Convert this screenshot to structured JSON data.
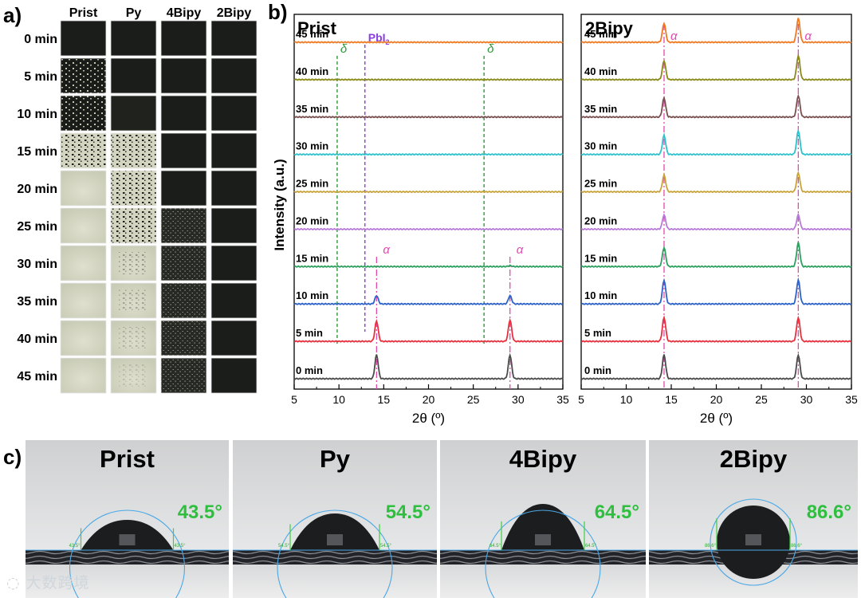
{
  "panel_labels": {
    "a": "a)",
    "b": "b)",
    "c": "c)"
  },
  "panel_a": {
    "columns": [
      "Prist",
      "Py",
      "4Bipy",
      "2Bipy"
    ],
    "rows": [
      "0 min",
      "5 min",
      "10 min",
      "15 min",
      "20 min",
      "25 min",
      "30 min",
      "35 min",
      "40 min",
      "45 min"
    ]
  },
  "panel_b": {
    "ylabel": "Intensity (a.u.)",
    "colors": [
      "#4a4a4a",
      "#e8313f",
      "#2f63c8",
      "#2ea060",
      "#b87ad8",
      "#c9a33a",
      "#2fc2cc",
      "#7a5050",
      "#8a8a1a",
      "#ef7a22"
    ]
  },
  "panel_c": {
    "samples": [
      {
        "name": "Prist",
        "angle": "43.5°",
        "small_label": "43.5°"
      },
      {
        "name": "Py",
        "angle": "54.5°",
        "small_label": "54.5°"
      },
      {
        "name": "4Bipy",
        "angle": "64.5°",
        "small_label": "64.5°"
      },
      {
        "name": "2Bipy",
        "angle": "86.6°",
        "small_label": "86.6°"
      }
    ]
  },
  "watermark": "大数跨境",
  "chart_data": [
    {
      "type": "line",
      "title": "Prist",
      "xlabel": "2θ (º)",
      "ylabel": "Intensity (a.u.)",
      "xlim": [
        5,
        35
      ],
      "xticks": [
        5,
        10,
        15,
        20,
        25,
        30,
        35
      ],
      "series_labels": [
        "0 min",
        "5 min",
        "10 min",
        "15 min",
        "20 min",
        "25 min",
        "30 min",
        "35 min",
        "40 min",
        "45 min"
      ],
      "series_peaks": [
        [
          {
            "x": 14.2,
            "h": 1.0
          },
          {
            "x": 29.1,
            "h": 1.0
          }
        ],
        [
          {
            "x": 14.2,
            "h": 0.85
          },
          {
            "x": 29.1,
            "h": 0.9
          }
        ],
        [
          {
            "x": 14.2,
            "h": 0.35
          },
          {
            "x": 29.1,
            "h": 0.35
          }
        ],
        [
          {
            "x": 29.1,
            "h": 0.04
          }
        ],
        [],
        [],
        [],
        [],
        [],
        []
      ],
      "reference_lines": [
        {
          "x": 9.8,
          "label": "δ",
          "style": "green-dashed"
        },
        {
          "x": 12.9,
          "label": "PbI",
          "subscript": "2",
          "style": "purple-dashed"
        },
        {
          "x": 26.2,
          "label": "δ",
          "style": "green-dashed"
        },
        {
          "x": 14.2,
          "label": "α",
          "style": "pink-dashdot"
        },
        {
          "x": 29.1,
          "label": "α",
          "style": "pink-dashdot"
        }
      ]
    },
    {
      "type": "line",
      "title": "2Bipy",
      "xlabel": "2θ (º)",
      "xlim": [
        5,
        35
      ],
      "xticks": [
        5,
        10,
        15,
        20,
        25,
        30,
        35
      ],
      "series_labels": [
        "0 min",
        "5 min",
        "10 min",
        "15 min",
        "20 min",
        "25 min",
        "30 min",
        "35 min",
        "40 min",
        "45 min"
      ],
      "series_peaks": [
        [
          {
            "x": 14.2,
            "h": 1.0
          },
          {
            "x": 29.1,
            "h": 1.0
          }
        ],
        [
          {
            "x": 14.2,
            "h": 1.0
          },
          {
            "x": 29.1,
            "h": 1.0
          }
        ],
        [
          {
            "x": 14.2,
            "h": 1.0
          },
          {
            "x": 29.1,
            "h": 1.0
          }
        ],
        [
          {
            "x": 14.2,
            "h": 0.8
          },
          {
            "x": 29.1,
            "h": 1.0
          }
        ],
        [
          {
            "x": 14.2,
            "h": 0.6
          },
          {
            "x": 29.1,
            "h": 0.6
          }
        ],
        [
          {
            "x": 14.2,
            "h": 0.7
          },
          {
            "x": 29.1,
            "h": 0.8
          }
        ],
        [
          {
            "x": 14.2,
            "h": 0.8
          },
          {
            "x": 29.1,
            "h": 1.0
          }
        ],
        [
          {
            "x": 14.2,
            "h": 0.8
          },
          {
            "x": 29.1,
            "h": 0.9
          }
        ],
        [
          {
            "x": 14.2,
            "h": 0.8
          },
          {
            "x": 29.1,
            "h": 1.0
          }
        ],
        [
          {
            "x": 14.2,
            "h": 0.8
          },
          {
            "x": 29.1,
            "h": 1.0
          }
        ]
      ],
      "reference_lines": [
        {
          "x": 14.2,
          "label": "α",
          "style": "pink-dashdot"
        },
        {
          "x": 29.1,
          "label": "α",
          "style": "pink-dashdot"
        }
      ]
    }
  ]
}
